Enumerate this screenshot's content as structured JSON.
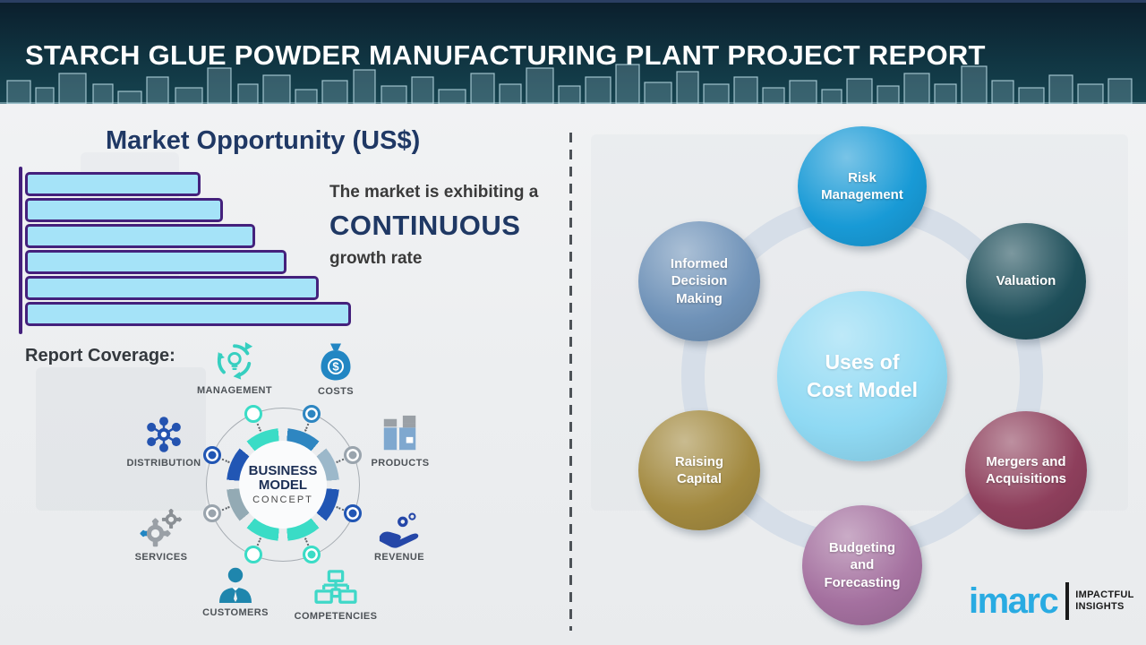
{
  "header": {
    "title": "STARCH GLUE POWDER MANUFACTURING PLANT PROJECT REPORT"
  },
  "left": {
    "section_title": "Market Opportunity (US$)",
    "growth": {
      "line1": "The market is exhibiting a",
      "line2": "CONTINUOUS",
      "line3": "growth rate"
    },
    "report_coverage_label": "Report Coverage:",
    "coverage_items": [
      {
        "label": "MANAGEMENT",
        "icon": "management-cycle-icon"
      },
      {
        "label": "COSTS",
        "icon": "money-bag-icon"
      },
      {
        "label": "DISTRIBUTION",
        "icon": "hub-network-icon"
      },
      {
        "label": "PRODUCTS",
        "icon": "product-box-icon"
      },
      {
        "label": "SERVICES",
        "icon": "gears-icon"
      },
      {
        "label": "REVENUE",
        "icon": "hand-coins-icon"
      },
      {
        "label": "CUSTOMERS",
        "icon": "person-icon"
      },
      {
        "label": "COMPETENCIES",
        "icon": "org-chart-icon"
      }
    ],
    "business_model": {
      "title": "BUSINESS\nMODEL",
      "subtitle": "CONCEPT"
    }
  },
  "chart_data": {
    "type": "bar",
    "orientation": "horizontal",
    "title": "Market Opportunity (US$)",
    "values": [
      53,
      60,
      70,
      80,
      90,
      100
    ],
    "value_note": "relative bar lengths; no axis tick labels shown",
    "annotation": "The market is exhibiting a CONTINUOUS growth rate",
    "bar_fill": "#a5e3f8",
    "bar_border": "#44217c",
    "grid": false
  },
  "right": {
    "center": {
      "label": "Uses of\nCost Model",
      "color": "#8fd9f3"
    },
    "nodes": [
      {
        "id": "risk-management",
        "label": "Risk\nManagement",
        "color": "#189ad6"
      },
      {
        "id": "informed-decision-making",
        "label": "Informed\nDecision\nMaking",
        "color": "#6f92b8"
      },
      {
        "id": "valuation",
        "label": "Valuation",
        "color": "#1d4e59"
      },
      {
        "id": "raising-capital",
        "label": "Raising\nCapital",
        "color": "#a2893f"
      },
      {
        "id": "mergers-acquisitions",
        "label": "Mergers and\nAcquisitions",
        "color": "#8e3f5c"
      },
      {
        "id": "budgeting-forecasting",
        "label": "Budgeting\nand\nForecasting",
        "color": "#a4709f"
      }
    ]
  },
  "logo": {
    "brand": "imarc",
    "tagline_line1": "IMPACTFUL",
    "tagline_line2": "INSIGHTS"
  },
  "colors": {
    "header_bg": "#103441",
    "title_navy": "#1f3864",
    "accent_teal": "#36cfc0",
    "accent_blue": "#2286c3",
    "royal_blue": "#2453b0",
    "logo_cyan": "#29abe2"
  }
}
